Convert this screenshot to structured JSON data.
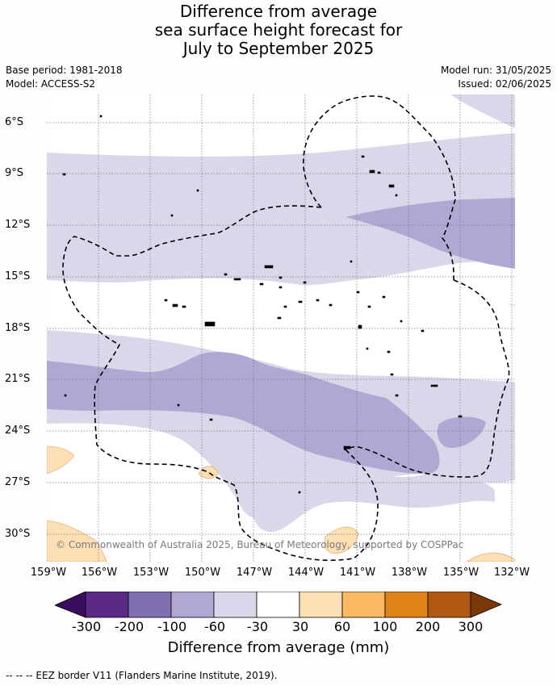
{
  "title": {
    "line1": "Difference from average",
    "line2": "sea surface height forecast for",
    "line3": "July to September 2025"
  },
  "meta": {
    "base_period": "Base period: 1981-2018",
    "model": "Model: ACCESS-S2",
    "model_run": "Model run: 31/05/2025",
    "issued": "Issued: 02/06/2025"
  },
  "axes": {
    "lat_ticks": [
      "6°S",
      "9°S",
      "12°S",
      "15°S",
      "18°S",
      "21°S",
      "24°S",
      "27°S",
      "30°S"
    ],
    "lon_ticks": [
      "159°W",
      "156°W",
      "153°W",
      "150°W",
      "147°W",
      "144°W",
      "141°W",
      "138°W",
      "135°W",
      "132°W"
    ]
  },
  "copyright": "© Commonwealth of Australia 2025, Bureau of Meteorology, supported by COSPPac",
  "legend": {
    "title": "Difference from average (mm)",
    "labels": [
      "-300",
      "-200",
      "-100",
      "-60",
      "-30",
      "30",
      "60",
      "100",
      "200",
      "300"
    ],
    "colors": [
      "#3a0d5c",
      "#5b2a86",
      "#8070b0",
      "#b0a8d2",
      "#d8d8ea",
      "#ffffff",
      "#fddfb4",
      "#f8b962",
      "#e08418",
      "#b25810",
      "#7a3808"
    ]
  },
  "eez_note": "--  --  -- EEZ border V11 (Flanders Marine Institute, 2019)."
}
